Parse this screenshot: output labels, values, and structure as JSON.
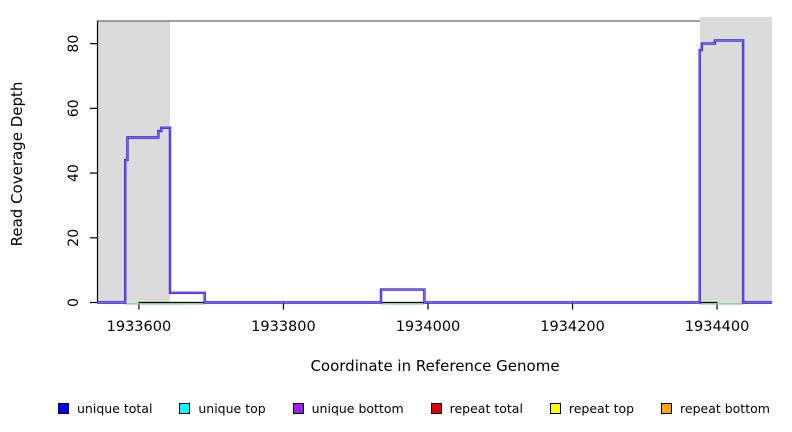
{
  "figure": {
    "x_axis_label": "Coordinate in Reference Genome",
    "y_axis_label": "Read Coverage Depth"
  },
  "legend": [
    {
      "name": "unique-total",
      "label": "unique total",
      "color": "#0000FF"
    },
    {
      "name": "unique-top",
      "label": "unique top",
      "color": "#00FFFF"
    },
    {
      "name": "unique-bottom",
      "label": "unique bottom",
      "color": "#A020F0"
    },
    {
      "name": "repeat-total",
      "label": "repeat total",
      "color": "#E00000"
    },
    {
      "name": "repeat-top",
      "label": "repeat top",
      "color": "#FFFF00"
    },
    {
      "name": "repeat-bottom",
      "label": "repeat bottom",
      "color": "#FFA500"
    }
  ],
  "chart_data": {
    "type": "line",
    "title": "",
    "xlabel": "Coordinate in Reference Genome",
    "ylabel": "Read Coverage Depth",
    "xlim": [
      1933542,
      1934476
    ],
    "ylim": [
      0,
      87
    ],
    "x_ticks": [
      1933600,
      1933800,
      1934000,
      1934200,
      1934400
    ],
    "y_ticks": [
      0,
      20,
      40,
      60,
      80
    ],
    "grid": false,
    "legend_position": "bottom",
    "colors": {
      "shaded_region": "#DBDBDB",
      "top_border": "#808080",
      "axis": "#000000",
      "coverage_line_core": "#1C1CE0",
      "coverage_line_halo": "#8D5FEE",
      "baseline_zero_line": "#8FCF8F"
    },
    "shaded_regions": [
      {
        "start": 1933543,
        "end": 1933643
      },
      {
        "start": 1934376,
        "end": 1934476
      }
    ],
    "series": [
      {
        "name": "unique coverage depth (total/bottom step line)",
        "points": [
          [
            1933542,
            0
          ],
          [
            1933581,
            0
          ],
          [
            1933581,
            44
          ],
          [
            1933584,
            44
          ],
          [
            1933584,
            51
          ],
          [
            1933627,
            51
          ],
          [
            1933627,
            53
          ],
          [
            1933631,
            53
          ],
          [
            1933631,
            54
          ],
          [
            1933643,
            54
          ],
          [
            1933643,
            3
          ],
          [
            1933691,
            3
          ],
          [
            1933691,
            0
          ],
          [
            1933935,
            0
          ],
          [
            1933935,
            4
          ],
          [
            1933995,
            4
          ],
          [
            1933995,
            0
          ],
          [
            1934376,
            0
          ],
          [
            1934376,
            78
          ],
          [
            1934379,
            78
          ],
          [
            1934379,
            80
          ],
          [
            1934397,
            80
          ],
          [
            1934397,
            81
          ],
          [
            1934436,
            81
          ],
          [
            1934436,
            0
          ],
          [
            1934476,
            0
          ]
        ]
      },
      {
        "name": "top-strand coverage at zero (green baseline)",
        "depth": 0,
        "segments": [
          [
            1933581,
            1933691
          ],
          [
            1933935,
            1933995
          ],
          [
            1934376,
            1934436
          ]
        ]
      }
    ]
  }
}
